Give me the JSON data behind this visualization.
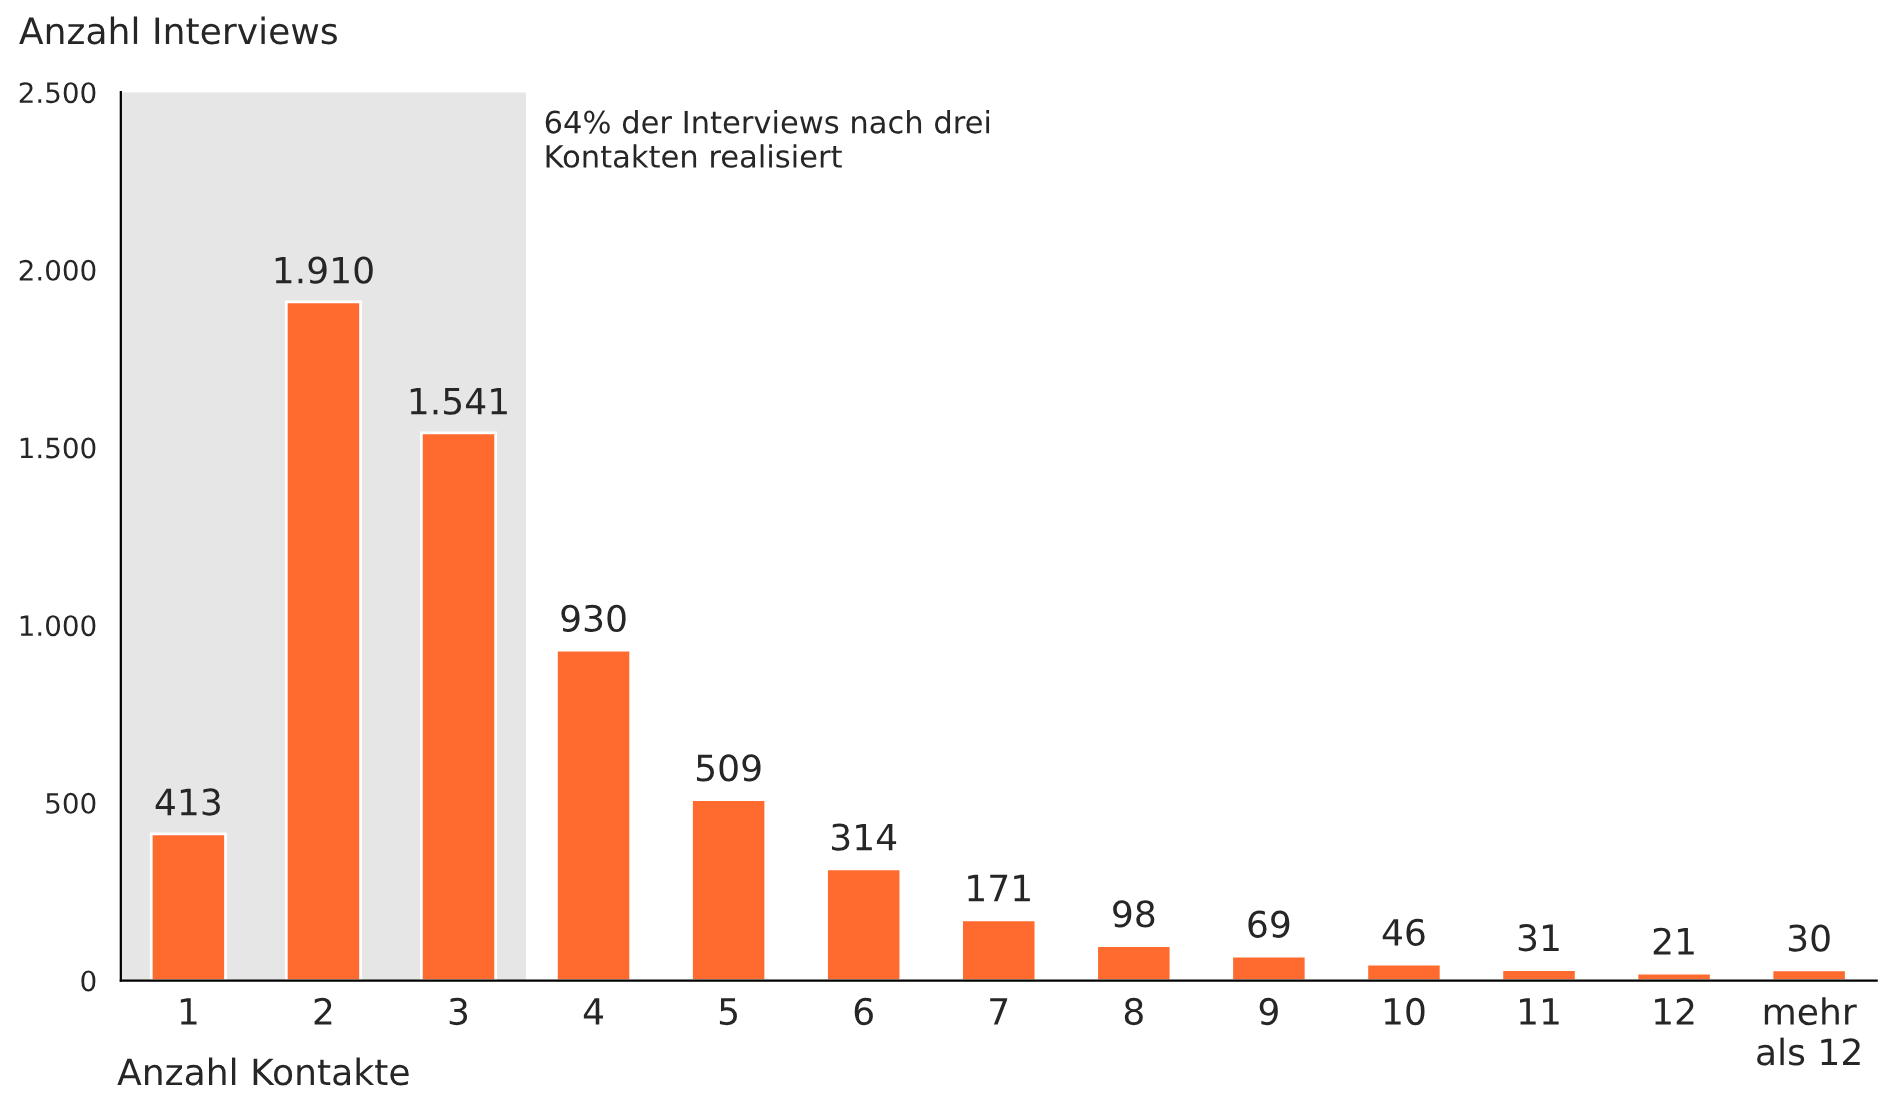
{
  "chart_data": {
    "type": "bar",
    "ylabel": "Anzahl Interviews",
    "xlabel": "Anzahl Kontakte",
    "categories": [
      "1",
      "2",
      "3",
      "4",
      "5",
      "6",
      "7",
      "8",
      "9",
      "10",
      "11",
      "12",
      "mehr\nals 12"
    ],
    "values": [
      413,
      1910,
      1541,
      930,
      509,
      314,
      171,
      98,
      69,
      46,
      31,
      21,
      30
    ],
    "value_labels": [
      "413",
      "1.910",
      "1.541",
      "930",
      "509",
      "314",
      "171",
      "98",
      "69",
      "46",
      "31",
      "21",
      "30"
    ],
    "color": "#ff6a2f",
    "ylim": [
      0,
      2500
    ],
    "yticks": [
      0,
      500,
      {
        "value": 1000,
        "label": "1.000"
      },
      {
        "value": 1500,
        "label": "1.500"
      },
      {
        "value": 2000,
        "label": "2.000"
      },
      {
        "value": 2500,
        "label": "2.500"
      }
    ],
    "bands": [
      {
        "axis": "x",
        "from": "1",
        "to": "3",
        "label": "64% der Interviews nach drei\nKontakten realisiert",
        "color": "#e6e6e6"
      }
    ],
    "grid": false,
    "legend": false
  }
}
